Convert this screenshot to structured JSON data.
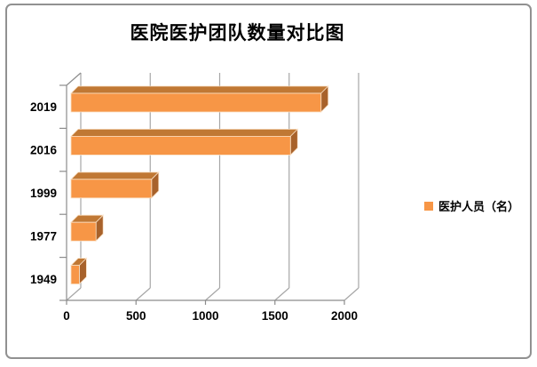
{
  "title": "医院医护团队数量对比图",
  "legend": {
    "label": "医护人员（名）",
    "swatch_color": "#F79646"
  },
  "chart_data": {
    "type": "bar",
    "orientation": "horizontal",
    "style": "3d",
    "title": "医院医护团队数量对比图",
    "categories": [
      "2019",
      "2016",
      "1999",
      "1977",
      "1949"
    ],
    "series": [
      {
        "name": "医护人员（名）",
        "values": [
          1800,
          1580,
          580,
          180,
          60
        ]
      }
    ],
    "x_ticks": [
      "0",
      "500",
      "1000",
      "1500",
      "2000"
    ],
    "xlim": [
      0,
      2000
    ],
    "grid": true,
    "legend_position": "right",
    "colors": {
      "bar_front": "#F79646",
      "bar_top": "#C07834",
      "bar_side": "#A8622B",
      "bar_outline": "#FAE0C4",
      "grid_line": "#A6A6A6",
      "axis_line": "#8C8C8C",
      "text": "#000000"
    }
  }
}
